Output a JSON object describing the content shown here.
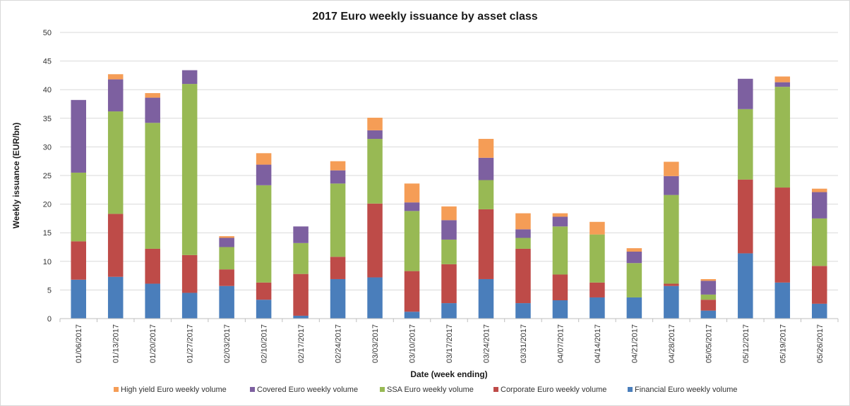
{
  "chart_data": {
    "type": "bar",
    "stacked": true,
    "title": "2017 Euro weekly issuance by asset class",
    "xlabel": "Date (week ending)",
    "ylabel": "Weekly issuance  (EUR/bn)",
    "ylim": [
      0,
      50
    ],
    "yticks": [
      0,
      5,
      10,
      15,
      20,
      25,
      30,
      35,
      40,
      45,
      50
    ],
    "grid": true,
    "legend_position": "bottom",
    "categories": [
      "01/06/2017",
      "01/13/2017",
      "01/20/2017",
      "01/27/2017",
      "02/03/2017",
      "02/10/2017",
      "02/17/2017",
      "02/24/2017",
      "03/03/2017",
      "03/10/2017",
      "03/17/2017",
      "03/24/2017",
      "03/31/2017",
      "04/07/2017",
      "04/14/2017",
      "04/21/2017",
      "04/28/2017",
      "05/05/2017",
      "05/12/2017",
      "05/19/2017",
      "05/26/2017"
    ],
    "series": [
      {
        "name": "Financial Euro weekly volume",
        "color": "#4a7ebb",
        "values": [
          6.8,
          7.3,
          6.1,
          4.5,
          5.7,
          3.3,
          0.5,
          6.9,
          7.2,
          1.2,
          2.7,
          6.9,
          2.7,
          3.2,
          3.7,
          3.7,
          5.7,
          1.4,
          11.4,
          6.3,
          2.6
        ]
      },
      {
        "name": "Corporate Euro weekly volume",
        "color": "#be4b48",
        "values": [
          6.7,
          11.0,
          6.1,
          6.6,
          2.9,
          3.0,
          7.3,
          3.9,
          12.9,
          7.1,
          6.8,
          12.2,
          9.5,
          4.5,
          2.6,
          0.0,
          0.4,
          1.9,
          12.9,
          16.6,
          6.6
        ]
      },
      {
        "name": "SSA Euro weekly volume",
        "color": "#98b954",
        "values": [
          12.0,
          17.9,
          22.0,
          29.9,
          3.9,
          17.0,
          5.4,
          12.8,
          11.3,
          10.5,
          4.3,
          5.1,
          1.9,
          8.4,
          8.4,
          6.0,
          15.5,
          0.9,
          12.3,
          17.6,
          8.3
        ]
      },
      {
        "name": "Covered Euro weekly volume",
        "color": "#7d60a0",
        "values": [
          12.7,
          5.6,
          4.4,
          2.4,
          1.6,
          3.6,
          2.9,
          2.3,
          1.5,
          1.5,
          3.4,
          3.9,
          1.5,
          1.7,
          0.0,
          2.0,
          3.3,
          2.4,
          5.3,
          0.8,
          4.6
        ]
      },
      {
        "name": "High yield Euro weekly volume",
        "color": "#f59d56",
        "values": [
          0.0,
          0.9,
          0.8,
          0.0,
          0.3,
          2.0,
          0.0,
          1.6,
          2.2,
          3.3,
          2.4,
          3.3,
          2.8,
          0.6,
          2.2,
          0.6,
          2.5,
          0.3,
          0.0,
          1.0,
          0.6
        ]
      }
    ],
    "legend_order": [
      "High yield Euro weekly volume",
      "Covered Euro weekly volume",
      "SSA Euro weekly volume",
      "Corporate Euro weekly volume",
      "Financial Euro weekly volume"
    ]
  }
}
